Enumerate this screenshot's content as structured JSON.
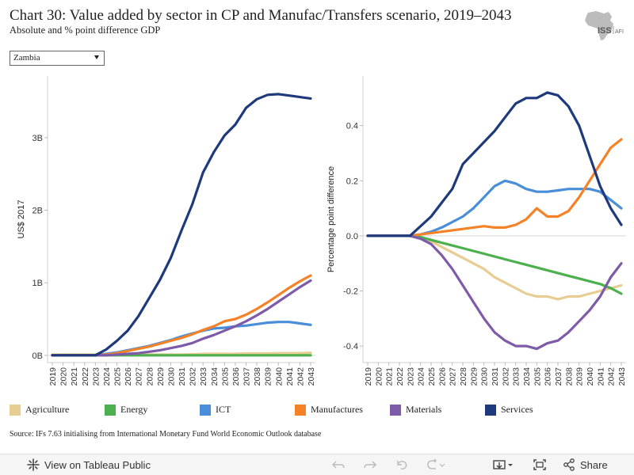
{
  "title": "Chart 30: Value added by sector in CP and Manufac/Transfers scenario, 2019–2043",
  "subtitle": "Absolute and % point difference GDP",
  "logo": {
    "text": "ISS",
    "subtext": "AFI"
  },
  "dropdown": {
    "selected": "Zambia"
  },
  "source": "Source: IFs 7.63 initialising from International Monetary Fund World Economic Outlook database",
  "footer": {
    "view_label": "View on Tableau Public",
    "share_label": "Share"
  },
  "chart_data": [
    {
      "type": "line",
      "ylabel": "US$ 2017",
      "ylim": [
        -0.1,
        3.85
      ],
      "yticks": [
        0,
        1,
        2,
        3
      ],
      "ytick_labels": [
        "0B",
        "1B",
        "2B",
        "3B"
      ],
      "x": [
        2019,
        2020,
        2021,
        2022,
        2023,
        2024,
        2025,
        2026,
        2027,
        2028,
        2029,
        2030,
        2031,
        2032,
        2033,
        2034,
        2035,
        2036,
        2037,
        2038,
        2039,
        2040,
        2041,
        2042,
        2043
      ],
      "series": [
        {
          "name": "Agriculture",
          "color": "#e8cd92",
          "values": [
            0.01,
            0.01,
            0.01,
            0.01,
            0.01,
            0.01,
            0.01,
            0.01,
            0.01,
            0.01,
            0.01,
            0.01,
            0.01,
            0.015,
            0.02,
            0.02,
            0.02,
            0.02,
            0.025,
            0.025,
            0.025,
            0.03,
            0.03,
            0.03,
            0.035
          ]
        },
        {
          "name": "Energy",
          "color": "#4cb04f",
          "values": [
            0,
            0,
            0,
            0,
            0,
            0,
            0,
            0,
            0,
            0,
            0,
            0,
            0,
            0,
            0,
            0,
            0,
            0,
            0,
            0,
            0,
            0,
            0,
            0,
            0
          ]
        },
        {
          "name": "ICT",
          "color": "#4a8ed9",
          "values": [
            0,
            0,
            0,
            0,
            0,
            0.02,
            0.04,
            0.07,
            0.1,
            0.13,
            0.17,
            0.21,
            0.26,
            0.3,
            0.34,
            0.37,
            0.38,
            0.4,
            0.41,
            0.43,
            0.45,
            0.46,
            0.46,
            0.44,
            0.42
          ]
        },
        {
          "name": "Manufactures",
          "color": "#f58226",
          "values": [
            0,
            0,
            0,
            0,
            0,
            0.01,
            0.03,
            0.06,
            0.09,
            0.12,
            0.16,
            0.2,
            0.24,
            0.29,
            0.35,
            0.4,
            0.47,
            0.5,
            0.56,
            0.64,
            0.73,
            0.83,
            0.93,
            1.02,
            1.1
          ]
        },
        {
          "name": "Materials",
          "color": "#7d5ba8",
          "values": [
            0,
            0,
            0,
            0,
            0,
            0,
            0.01,
            0.02,
            0.03,
            0.05,
            0.07,
            0.1,
            0.13,
            0.17,
            0.23,
            0.28,
            0.34,
            0.4,
            0.47,
            0.55,
            0.64,
            0.74,
            0.84,
            0.94,
            1.03
          ]
        },
        {
          "name": "Services",
          "color": "#1e3a7d",
          "values": [
            0,
            0,
            0,
            0,
            0,
            0.08,
            0.2,
            0.34,
            0.54,
            0.79,
            1.04,
            1.34,
            1.72,
            2.08,
            2.52,
            2.8,
            3.03,
            3.18,
            3.41,
            3.53,
            3.59,
            3.6,
            3.58,
            3.56,
            3.54
          ]
        }
      ]
    },
    {
      "type": "line",
      "ylabel": "Percentage point difference",
      "ylim": [
        -0.46,
        0.58
      ],
      "yticks": [
        -0.4,
        -0.2,
        0,
        0.2,
        0.4
      ],
      "ytick_labels": [
        "-0.4",
        "-0.2",
        "0.0",
        "0.2",
        "0.4"
      ],
      "x": [
        2019,
        2020,
        2021,
        2022,
        2023,
        2024,
        2025,
        2026,
        2027,
        2028,
        2029,
        2030,
        2031,
        2032,
        2033,
        2034,
        2035,
        2036,
        2037,
        2038,
        2039,
        2040,
        2041,
        2042,
        2043
      ],
      "series": [
        {
          "name": "Agriculture",
          "color": "#e8cd92",
          "values": [
            0,
            0,
            0,
            0,
            0,
            -0.01,
            -0.02,
            -0.04,
            -0.06,
            -0.08,
            -0.1,
            -0.12,
            -0.15,
            -0.17,
            -0.19,
            -0.21,
            -0.22,
            -0.22,
            -0.23,
            -0.22,
            -0.22,
            -0.21,
            -0.2,
            -0.19,
            -0.18
          ]
        },
        {
          "name": "Energy",
          "color": "#4cb04f",
          "values": [
            0,
            0,
            0,
            0,
            0,
            -0.005,
            -0.015,
            -0.025,
            -0.035,
            -0.045,
            -0.055,
            -0.065,
            -0.075,
            -0.085,
            -0.095,
            -0.105,
            -0.115,
            -0.125,
            -0.135,
            -0.145,
            -0.155,
            -0.165,
            -0.175,
            -0.19,
            -0.21
          ]
        },
        {
          "name": "ICT",
          "color": "#4a8ed9",
          "values": [
            0,
            0,
            0,
            0,
            0,
            0.005,
            0.015,
            0.03,
            0.05,
            0.07,
            0.1,
            0.14,
            0.18,
            0.2,
            0.19,
            0.17,
            0.16,
            0.16,
            0.165,
            0.17,
            0.17,
            0.17,
            0.16,
            0.13,
            0.1
          ]
        },
        {
          "name": "Manufactures",
          "color": "#f58226",
          "values": [
            0,
            0,
            0,
            0,
            0,
            0.005,
            0.01,
            0.015,
            0.02,
            0.025,
            0.03,
            0.035,
            0.03,
            0.03,
            0.04,
            0.06,
            0.1,
            0.07,
            0.07,
            0.09,
            0.14,
            0.2,
            0.26,
            0.32,
            0.35
          ]
        },
        {
          "name": "Materials",
          "color": "#7d5ba8",
          "values": [
            0,
            0,
            0,
            0,
            0,
            -0.01,
            -0.03,
            -0.07,
            -0.12,
            -0.18,
            -0.24,
            -0.3,
            -0.35,
            -0.38,
            -0.4,
            -0.4,
            -0.41,
            -0.39,
            -0.38,
            -0.35,
            -0.31,
            -0.27,
            -0.22,
            -0.15,
            -0.1
          ]
        },
        {
          "name": "Services",
          "color": "#1e3a7d",
          "values": [
            0,
            0,
            0,
            0,
            0,
            0.035,
            0.07,
            0.12,
            0.17,
            0.26,
            0.3,
            0.34,
            0.38,
            0.43,
            0.48,
            0.5,
            0.5,
            0.52,
            0.51,
            0.47,
            0.4,
            0.29,
            0.18,
            0.1,
            0.04
          ]
        }
      ]
    }
  ],
  "legend": [
    {
      "name": "Agriculture",
      "color": "#e8cd92"
    },
    {
      "name": "Energy",
      "color": "#4cb04f"
    },
    {
      "name": "ICT",
      "color": "#4a8ed9"
    },
    {
      "name": "Manufactures",
      "color": "#f58226"
    },
    {
      "name": "Materials",
      "color": "#7d5ba8"
    },
    {
      "name": "Services",
      "color": "#1e3a7d"
    }
  ]
}
